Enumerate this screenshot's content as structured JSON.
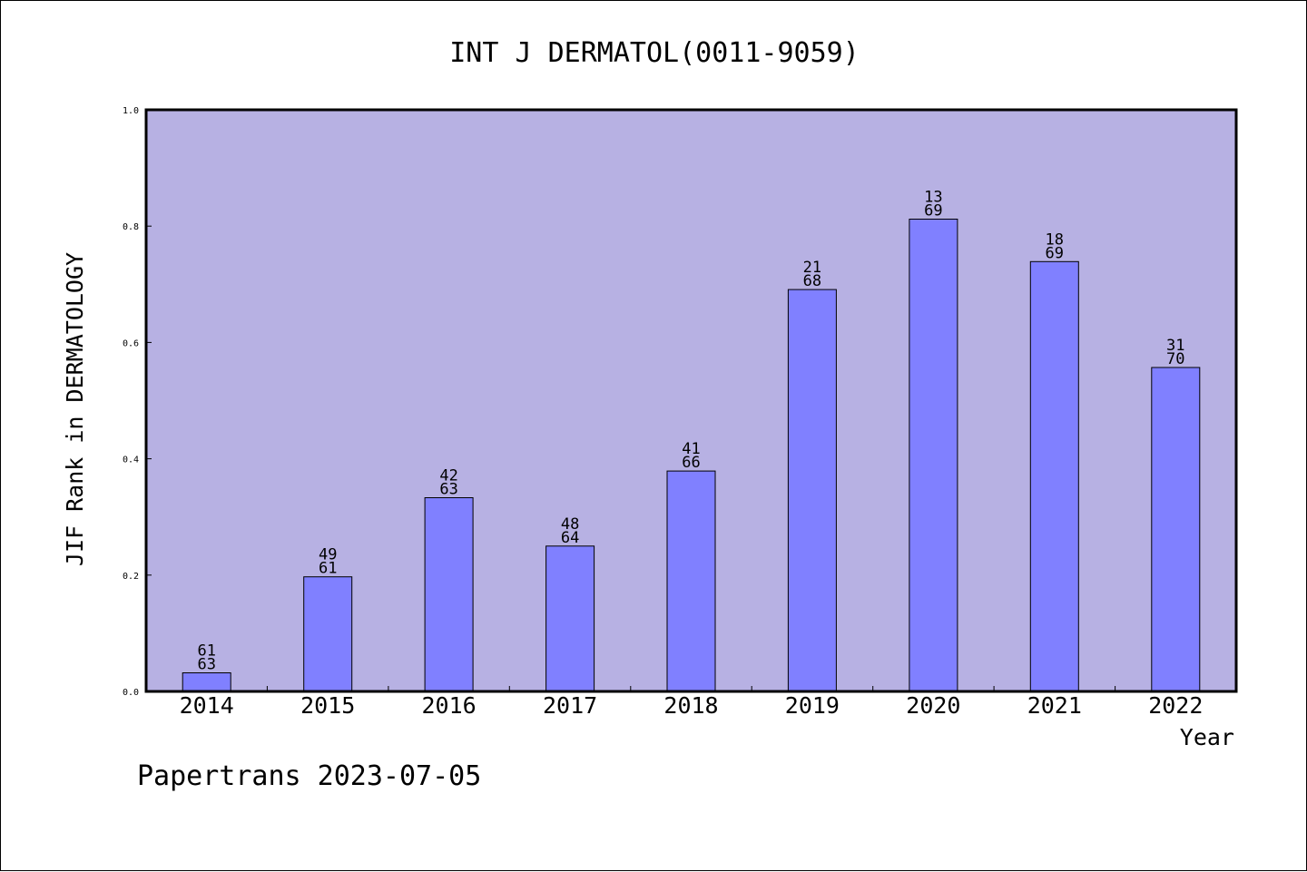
{
  "chart_data": {
    "type": "bar",
    "title": "INT J DERMATOL(0011-9059)",
    "xlabel": "Year",
    "ylabel": "JIF Rank in DERMATOLOGY",
    "ylim": [
      0,
      1.0
    ],
    "yticks": [
      "0.0",
      "0.2",
      "0.4",
      "0.6",
      "0.8",
      "1.0"
    ],
    "ytick_values": [
      0,
      0.2,
      0.4,
      0.6,
      0.8,
      1.0
    ],
    "categories": [
      "2014",
      "2015",
      "2016",
      "2017",
      "2018",
      "2019",
      "2020",
      "2021",
      "2022"
    ],
    "values": [
      0.032,
      0.197,
      0.333,
      0.25,
      0.379,
      0.691,
      0.812,
      0.739,
      0.557
    ],
    "rank": [
      "61",
      "49",
      "42",
      "48",
      "41",
      "21",
      "13",
      "18",
      "31"
    ],
    "total": [
      "63",
      "61",
      "63",
      "64",
      "66",
      "68",
      "69",
      "69",
      "70"
    ],
    "grid": false,
    "legend": "none"
  },
  "footer": {
    "watermark": "Papertrans 2023-07-05"
  },
  "colors": {
    "plot_background": "#b7b1e3",
    "bar_fill": "#8080ff",
    "bar_stroke": "#000000"
  }
}
